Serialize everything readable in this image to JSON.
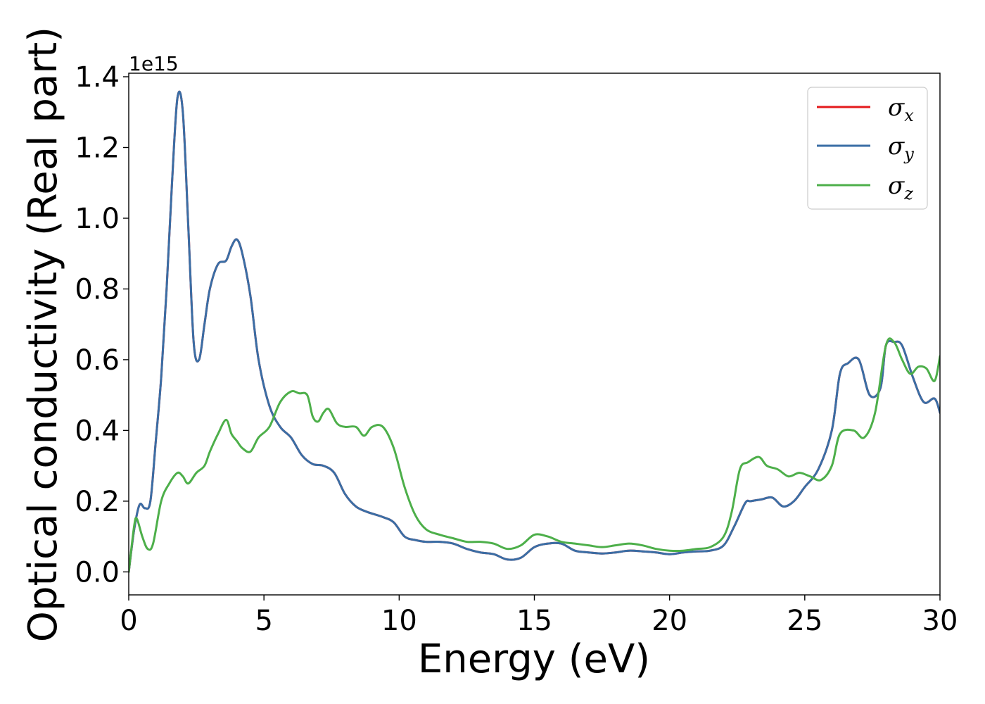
{
  "chart_data": {
    "type": "line",
    "title": "",
    "xlabel": "Energy (eV)",
    "ylabel": "Optical conductivity (Real part)",
    "y_offset_label": "1e15",
    "xlim": [
      0,
      30
    ],
    "ylim": [
      -0.065,
      1.41
    ],
    "x_ticks": [
      0,
      5,
      10,
      15,
      20,
      25,
      30
    ],
    "y_ticks": [
      0.0,
      0.2,
      0.4,
      0.6,
      0.8,
      1.0,
      1.2,
      1.4
    ],
    "x_tick_labels": [
      "0",
      "5",
      "10",
      "15",
      "20",
      "25",
      "30"
    ],
    "y_tick_labels": [
      "0.0",
      "0.2",
      "0.4",
      "0.6",
      "0.8",
      "1.0",
      "1.2",
      "1.4"
    ],
    "grid": false,
    "legend_position": "top-right",
    "series": [
      {
        "name": "σx",
        "name_base": "σ",
        "name_sub": "x",
        "color": "#e41a1c",
        "x": [
          0,
          0.2,
          0.4,
          0.6,
          0.8,
          1.0,
          1.2,
          1.4,
          1.6,
          1.8,
          2.0,
          2.2,
          2.4,
          2.6,
          2.8,
          3.0,
          3.3,
          3.6,
          3.8,
          4.0,
          4.2,
          4.5,
          4.8,
          5.2,
          5.6,
          6.0,
          6.4,
          6.8,
          7.2,
          7.6,
          8.0,
          8.4,
          8.8,
          9.4,
          9.8,
          10.2,
          10.6,
          11.0,
          11.5,
          12.0,
          12.5,
          13.0,
          13.5,
          14.0,
          14.5,
          15.0,
          15.5,
          16.0,
          16.5,
          17.0,
          17.5,
          18.0,
          18.5,
          19.0,
          19.5,
          20.0,
          20.5,
          21.0,
          21.5,
          22.0,
          22.4,
          22.8,
          23.0,
          23.4,
          23.8,
          24.2,
          24.6,
          25.0,
          25.5,
          26.0,
          26.3,
          26.6,
          27.0,
          27.4,
          27.8,
          28.0,
          28.3,
          28.6,
          29.0,
          29.4,
          29.8,
          30.0
        ],
        "y": [
          0.0,
          0.12,
          0.19,
          0.18,
          0.2,
          0.37,
          0.55,
          0.8,
          1.1,
          1.34,
          1.3,
          0.98,
          0.65,
          0.6,
          0.7,
          0.8,
          0.87,
          0.88,
          0.92,
          0.94,
          0.9,
          0.78,
          0.6,
          0.47,
          0.41,
          0.38,
          0.33,
          0.305,
          0.3,
          0.28,
          0.22,
          0.185,
          0.17,
          0.155,
          0.14,
          0.1,
          0.09,
          0.085,
          0.085,
          0.08,
          0.065,
          0.055,
          0.05,
          0.035,
          0.04,
          0.07,
          0.08,
          0.08,
          0.06,
          0.055,
          0.052,
          0.055,
          0.06,
          0.058,
          0.055,
          0.05,
          0.055,
          0.058,
          0.06,
          0.075,
          0.13,
          0.195,
          0.2,
          0.205,
          0.21,
          0.185,
          0.2,
          0.24,
          0.29,
          0.4,
          0.56,
          0.59,
          0.6,
          0.5,
          0.52,
          0.64,
          0.65,
          0.64,
          0.55,
          0.48,
          0.49,
          0.45
        ]
      },
      {
        "name": "σy",
        "name_base": "σ",
        "name_sub": "y",
        "color": "#3a6ea5",
        "x": [
          0,
          0.2,
          0.4,
          0.6,
          0.8,
          1.0,
          1.2,
          1.4,
          1.6,
          1.8,
          2.0,
          2.2,
          2.4,
          2.6,
          2.8,
          3.0,
          3.3,
          3.6,
          3.8,
          4.0,
          4.2,
          4.5,
          4.8,
          5.2,
          5.6,
          6.0,
          6.4,
          6.8,
          7.2,
          7.6,
          8.0,
          8.4,
          8.8,
          9.4,
          9.8,
          10.2,
          10.6,
          11.0,
          11.5,
          12.0,
          12.5,
          13.0,
          13.5,
          14.0,
          14.5,
          15.0,
          15.5,
          16.0,
          16.5,
          17.0,
          17.5,
          18.0,
          18.5,
          19.0,
          19.5,
          20.0,
          20.5,
          21.0,
          21.5,
          22.0,
          22.4,
          22.8,
          23.0,
          23.4,
          23.8,
          24.2,
          24.6,
          25.0,
          25.5,
          26.0,
          26.3,
          26.6,
          27.0,
          27.4,
          27.8,
          28.0,
          28.3,
          28.6,
          29.0,
          29.4,
          29.8,
          30.0
        ],
        "y": [
          0.0,
          0.12,
          0.19,
          0.18,
          0.2,
          0.37,
          0.55,
          0.8,
          1.1,
          1.34,
          1.3,
          0.98,
          0.65,
          0.6,
          0.7,
          0.8,
          0.87,
          0.88,
          0.92,
          0.94,
          0.9,
          0.78,
          0.6,
          0.47,
          0.41,
          0.38,
          0.33,
          0.305,
          0.3,
          0.28,
          0.22,
          0.185,
          0.17,
          0.155,
          0.14,
          0.1,
          0.09,
          0.085,
          0.085,
          0.08,
          0.065,
          0.055,
          0.05,
          0.035,
          0.04,
          0.07,
          0.08,
          0.08,
          0.06,
          0.055,
          0.052,
          0.055,
          0.06,
          0.058,
          0.055,
          0.05,
          0.055,
          0.058,
          0.06,
          0.075,
          0.13,
          0.195,
          0.2,
          0.205,
          0.21,
          0.185,
          0.2,
          0.24,
          0.29,
          0.4,
          0.56,
          0.59,
          0.6,
          0.5,
          0.52,
          0.64,
          0.65,
          0.64,
          0.55,
          0.48,
          0.49,
          0.45
        ]
      },
      {
        "name": "σz",
        "name_base": "σ",
        "name_sub": "z",
        "color": "#4daf4a",
        "x": [
          0,
          0.2,
          0.3,
          0.5,
          0.7,
          0.9,
          1.2,
          1.5,
          1.8,
          2.0,
          2.2,
          2.5,
          2.8,
          3.0,
          3.3,
          3.6,
          3.8,
          4.0,
          4.2,
          4.5,
          4.8,
          5.2,
          5.6,
          6.0,
          6.3,
          6.6,
          6.8,
          7.0,
          7.2,
          7.4,
          7.7,
          8.0,
          8.4,
          8.7,
          9.0,
          9.4,
          9.8,
          10.2,
          10.6,
          11.0,
          11.5,
          12.0,
          12.5,
          13.0,
          13.5,
          14.0,
          14.5,
          15.0,
          15.5,
          16.0,
          16.5,
          17.0,
          17.5,
          18.0,
          18.5,
          19.0,
          19.5,
          20.0,
          20.5,
          21.0,
          21.5,
          22.0,
          22.3,
          22.6,
          22.9,
          23.3,
          23.6,
          24.0,
          24.4,
          24.8,
          25.2,
          25.6,
          26.0,
          26.3,
          26.8,
          27.2,
          27.6,
          28.0,
          28.3,
          28.6,
          28.9,
          29.2,
          29.5,
          29.8,
          30.0
        ],
        "y": [
          0.0,
          0.13,
          0.15,
          0.1,
          0.065,
          0.08,
          0.2,
          0.25,
          0.28,
          0.27,
          0.25,
          0.28,
          0.3,
          0.34,
          0.39,
          0.43,
          0.39,
          0.37,
          0.35,
          0.34,
          0.38,
          0.41,
          0.48,
          0.51,
          0.505,
          0.5,
          0.44,
          0.425,
          0.45,
          0.46,
          0.42,
          0.41,
          0.41,
          0.385,
          0.41,
          0.41,
          0.35,
          0.24,
          0.16,
          0.12,
          0.105,
          0.095,
          0.085,
          0.085,
          0.08,
          0.065,
          0.075,
          0.105,
          0.1,
          0.085,
          0.08,
          0.075,
          0.07,
          0.075,
          0.08,
          0.075,
          0.065,
          0.06,
          0.06,
          0.065,
          0.07,
          0.1,
          0.17,
          0.29,
          0.31,
          0.325,
          0.3,
          0.29,
          0.27,
          0.28,
          0.27,
          0.26,
          0.3,
          0.39,
          0.4,
          0.38,
          0.45,
          0.64,
          0.65,
          0.6,
          0.56,
          0.58,
          0.575,
          0.54,
          0.61
        ]
      }
    ]
  }
}
